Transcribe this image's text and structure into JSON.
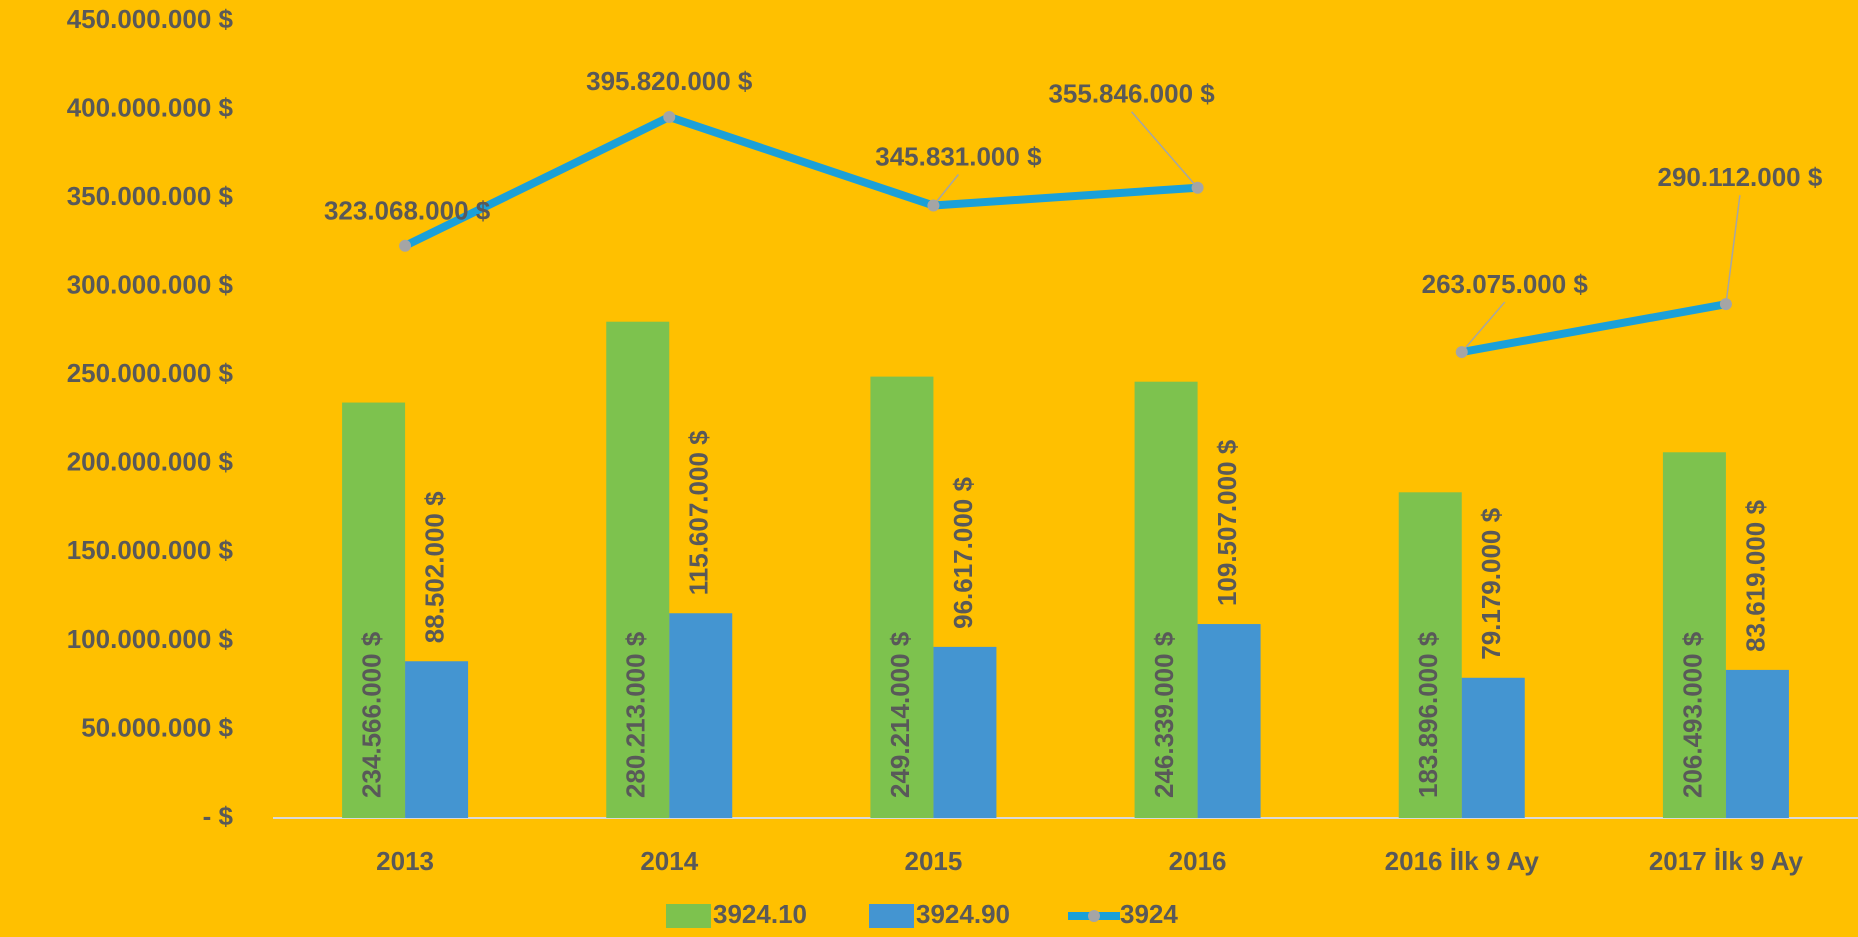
{
  "chart_data": {
    "type": "bar_line",
    "categories": [
      "2013",
      "2014",
      "2015",
      "2016",
      "2016 İlk 9 Ay",
      "2017 İlk 9 Ay"
    ],
    "series": [
      {
        "name": "3924.10",
        "type": "bar",
        "color": "#7dc24e",
        "values": [
          234566000,
          280213000,
          249214000,
          246339000,
          183896000,
          206493000
        ],
        "value_labels": [
          "234.566.000 $",
          "280.213.000 $",
          "249.214.000 $",
          "246.339.000 $",
          "183.896.000 $",
          "206.493.000 $"
        ]
      },
      {
        "name": "3924.90",
        "type": "bar",
        "color": "#4495d1",
        "values": [
          88502000,
          115607000,
          96617000,
          109507000,
          79179000,
          83619000
        ],
        "value_labels": [
          "88.502.000 $",
          "115.607.000 $",
          "96.617.000 $",
          "109.507.000 $",
          "79.179.000 $",
          "83.619.000 $"
        ]
      },
      {
        "name": "3924",
        "type": "line",
        "color": "#1ba0d8",
        "values": [
          323068000,
          395820000,
          345831000,
          355846000,
          263075000,
          290112000
        ],
        "value_labels": [
          "323.068.000 $",
          "395.820.000 $",
          "345.831.000 $",
          "355.846.000 $",
          "263.075.000 $",
          "290.112.000 $"
        ],
        "gaps_after": [
          3
        ]
      }
    ],
    "ylim": [
      0,
      450000000
    ],
    "yticks": [
      {
        "value": 0,
        "label": "- $"
      },
      {
        "value": 50000000,
        "label": "50.000.000 $"
      },
      {
        "value": 100000000,
        "label": "100.000.000 $"
      },
      {
        "value": 150000000,
        "label": "150.000.000 $"
      },
      {
        "value": 200000000,
        "label": "200.000.000 $"
      },
      {
        "value": 250000000,
        "label": "250.000.000 $"
      },
      {
        "value": 300000000,
        "label": "300.000.000 $"
      },
      {
        "value": 350000000,
        "label": "350.000.000 $"
      },
      {
        "value": 400000000,
        "label": "400.000.000 $"
      },
      {
        "value": 450000000,
        "label": "450.000.000 $"
      }
    ],
    "legend": "bottom"
  }
}
